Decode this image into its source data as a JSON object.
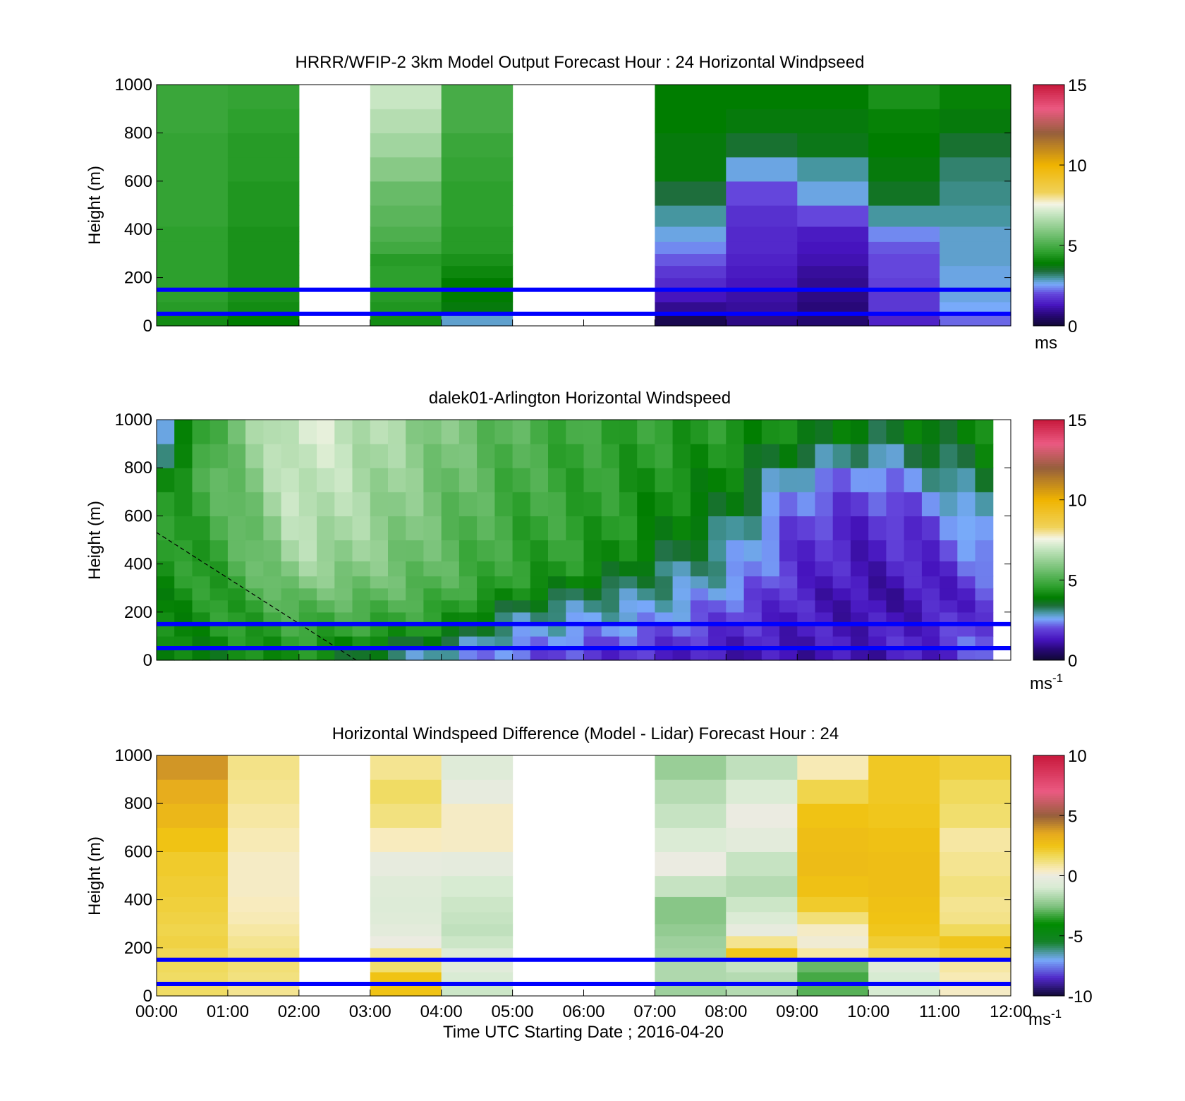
{
  "figure": {
    "time_axis_label": "Time UTC  Starting Date ; 2016-04-20",
    "x_tick_labels": [
      "00:00",
      "01:00",
      "02:00",
      "03:00",
      "04:00",
      "05:00",
      "06:00",
      "07:00",
      "08:00",
      "09:00",
      "10:00",
      "11:00",
      "12:00"
    ],
    "reference_line_color": "#0000ff",
    "reference_line_heights_m": [
      150,
      50
    ]
  },
  "chart_data": [
    {
      "type": "heatmap",
      "title": "HRRR/WFIP-2 3km Model Output   Forecast Hour : 24 Horizontal Windpseed",
      "ylabel": "Height (m)",
      "xlabel": "",
      "ylim": [
        0,
        1000
      ],
      "xlim": [
        "00:00",
        "12:00"
      ],
      "y_ticks": [
        "0",
        "200",
        "400",
        "600",
        "800",
        "1000"
      ],
      "colorbar": {
        "min": 0,
        "max": 15,
        "ticks": [
          "0",
          "5",
          "10",
          "15"
        ],
        "unit": "ms",
        "unit_sup": ""
      },
      "colormap": "wind",
      "time_bins": [
        "00:00",
        "01:00",
        "02:00",
        "03:00",
        "04:00",
        "05:00",
        "06:00",
        "07:00",
        "08:00",
        "09:00",
        "10:00",
        "11:00"
      ],
      "height_levels_m": [
        25,
        75,
        125,
        175,
        225,
        275,
        325,
        375,
        450,
        550,
        650,
        750,
        850,
        950
      ],
      "values": [
        [
          4.2,
          4.5,
          4.6,
          4.6,
          4.6,
          4.6,
          4.6,
          4.6,
          4.7,
          4.7,
          4.7,
          4.7,
          4.8,
          4.8
        ],
        [
          3.9,
          4.2,
          4.3,
          4.3,
          4.3,
          4.3,
          4.3,
          4.3,
          4.4,
          4.4,
          4.5,
          4.5,
          4.6,
          4.7
        ],
        [
          null,
          null,
          null,
          null,
          null,
          null,
          null,
          null,
          null,
          null,
          null,
          null,
          null,
          null
        ],
        [
          4.2,
          4.4,
          4.5,
          4.6,
          4.6,
          4.5,
          4.9,
          5.1,
          5.3,
          5.5,
          6.0,
          6.4,
          6.7,
          7.0
        ],
        [
          2.8,
          3.8,
          3.9,
          3.9,
          4.1,
          4.3,
          4.5,
          4.5,
          4.6,
          4.6,
          4.7,
          4.8,
          5.0,
          5.0
        ],
        [
          null,
          null,
          null,
          null,
          null,
          null,
          null,
          null,
          null,
          null,
          null,
          null,
          null,
          null
        ],
        [
          null,
          null,
          null,
          null,
          null,
          null,
          null,
          null,
          null,
          null,
          null,
          null,
          null,
          null
        ],
        [
          0.3,
          0.9,
          1.3,
          1.6,
          1.8,
          2.1,
          2.4,
          2.7,
          3.0,
          3.4,
          3.8,
          3.8,
          3.9,
          3.9
        ],
        [
          0.8,
          1.0,
          1.1,
          1.3,
          1.4,
          1.5,
          1.6,
          1.6,
          1.7,
          2.0,
          2.7,
          3.5,
          3.8,
          3.9
        ],
        [
          0.6,
          0.7,
          0.8,
          0.9,
          1.0,
          1.2,
          1.3,
          1.4,
          2.0,
          2.7,
          3.0,
          3.7,
          3.8,
          3.9
        ],
        [
          1.5,
          1.8,
          1.8,
          1.9,
          2.0,
          2.0,
          2.1,
          2.4,
          3.0,
          3.6,
          3.8,
          3.9,
          4.0,
          4.3
        ],
        [
          2.2,
          2.6,
          2.7,
          2.7,
          2.7,
          2.8,
          2.8,
          2.8,
          3.0,
          3.1,
          3.2,
          3.5,
          3.8,
          4.0
        ]
      ]
    },
    {
      "type": "heatmap",
      "title": "dalek01-Arlington  Horizontal Windspeed",
      "ylabel": "Height (m)",
      "xlabel": "",
      "ylim": [
        0,
        1000
      ],
      "xlim": [
        "00:00",
        "12:00"
      ],
      "y_ticks": [
        "0",
        "200",
        "400",
        "600",
        "800",
        "1000"
      ],
      "colorbar": {
        "min": 0,
        "max": 15,
        "ticks": [
          "0",
          "5",
          "10",
          "15"
        ],
        "unit": "ms",
        "unit_sup": "-1"
      },
      "colormap": "wind",
      "time_range": [
        "00:00",
        "11:45"
      ],
      "profile_count": 47,
      "height_levels_m": [
        25,
        75,
        125,
        175,
        225,
        275,
        325,
        375,
        450,
        550,
        650,
        750,
        850,
        950
      ],
      "lidar_min_speed_profile_by_hour": {
        "hours": [
          0,
          1,
          2,
          3,
          4,
          5,
          6,
          7,
          8,
          9,
          10,
          11,
          12
        ],
        "min_speed": [
          3.9,
          4.2,
          4.5,
          4.9,
          4.8,
          4.5,
          3.2,
          2.8,
          1.6,
          1.0,
          0.9,
          1.2,
          2.0
        ]
      },
      "approx_values_by_hour": [
        [
          3.8,
          3.9,
          4.0,
          4.0,
          4.1,
          4.1,
          4.2,
          4.2,
          4.2,
          4.3,
          4.3,
          4.1,
          3.2,
          2.6
        ],
        [
          4.0,
          4.2,
          4.4,
          4.5,
          4.5,
          4.6,
          4.7,
          4.8,
          4.9,
          5.0,
          5.2,
          5.4,
          5.5,
          5.6
        ],
        [
          4.4,
          4.6,
          4.8,
          5.0,
          5.3,
          5.6,
          6.0,
          6.3,
          6.6,
          6.8,
          7.0,
          7.1,
          7.2,
          7.3
        ],
        [
          3.5,
          4.0,
          4.6,
          4.9,
          5.2,
          5.5,
          5.7,
          5.9,
          6.1,
          6.3,
          6.4,
          6.5,
          6.6,
          6.7
        ],
        [
          2.8,
          3.4,
          4.1,
          4.6,
          4.8,
          5.0,
          5.2,
          5.3,
          5.4,
          5.5,
          5.6,
          5.7,
          5.8,
          5.9
        ],
        [
          2.2,
          2.6,
          2.9,
          3.1,
          3.6,
          4.2,
          4.5,
          4.6,
          4.7,
          4.8,
          4.9,
          5.0,
          5.1,
          5.2
        ],
        [
          1.8,
          2.2,
          2.5,
          2.8,
          3.0,
          3.3,
          3.8,
          4.3,
          4.5,
          4.6,
          4.7,
          4.7,
          4.7,
          4.8
        ],
        [
          1.6,
          1.9,
          2.2,
          2.6,
          2.8,
          3.0,
          3.2,
          3.3,
          3.8,
          4.1,
          4.2,
          4.3,
          4.5,
          4.6
        ],
        [
          1.3,
          1.5,
          1.7,
          1.9,
          2.1,
          2.4,
          2.7,
          2.9,
          3.0,
          3.3,
          3.8,
          4.0,
          4.2,
          4.4
        ],
        [
          1.2,
          1.3,
          1.4,
          1.4,
          1.5,
          1.5,
          1.6,
          1.7,
          1.7,
          1.9,
          2.2,
          2.6,
          3.4,
          4.0
        ],
        [
          1.2,
          1.4,
          1.3,
          1.2,
          1.1,
          1.1,
          1.2,
          1.3,
          1.4,
          1.5,
          1.8,
          2.2,
          2.9,
          3.6
        ],
        [
          1.5,
          1.7,
          1.6,
          1.5,
          1.4,
          1.4,
          1.5,
          1.6,
          1.8,
          2.0,
          2.4,
          2.9,
          3.4,
          3.8
        ],
        [
          2.4,
          2.6,
          2.4,
          2.2,
          2.0,
          2.1,
          2.3,
          2.6,
          3.0,
          3.4,
          3.7,
          3.9,
          4.0,
          4.1
        ]
      ]
    },
    {
      "type": "heatmap",
      "title": "Horizontal Windspeed Difference (Model - Lidar) Forecast Hour : 24",
      "ylabel": "Height (m)",
      "xlabel": "Time UTC  Starting Date ; 2016-04-20",
      "ylim": [
        0,
        1000
      ],
      "xlim": [
        "00:00",
        "12:00"
      ],
      "y_ticks": [
        "0",
        "200",
        "400",
        "600",
        "800",
        "1000"
      ],
      "colorbar": {
        "min": -10,
        "max": 10,
        "ticks": [
          "-10",
          "-5",
          "0",
          "5",
          "10"
        ],
        "unit": "ms",
        "unit_sup": "-1"
      },
      "colormap": "diff",
      "time_bins": [
        "00:00",
        "01:00",
        "02:00",
        "03:00",
        "04:00",
        "05:00",
        "06:00",
        "07:00",
        "08:00",
        "09:00",
        "10:00",
        "11:00"
      ],
      "height_levels_m": [
        25,
        75,
        125,
        175,
        225,
        275,
        325,
        375,
        450,
        550,
        650,
        750,
        850,
        950
      ],
      "values": [
        [
          1.5,
          1.5,
          1.6,
          1.7,
          1.9,
          1.8,
          1.9,
          2.0,
          2.1,
          2.2,
          2.5,
          3.0,
          3.4,
          3.9
        ],
        [
          1.0,
          1.2,
          1.3,
          1.2,
          1.0,
          0.8,
          0.6,
          0.5,
          0.4,
          0.4,
          0.6,
          0.8,
          1.0,
          1.1
        ],
        [
          null,
          null,
          null,
          null,
          null,
          null,
          null,
          null,
          null,
          null,
          null,
          null,
          null,
          null
        ],
        [
          2.5,
          2.5,
          1.4,
          1.0,
          0.0,
          -0.4,
          -0.6,
          -0.7,
          -0.6,
          -0.2,
          0.5,
          1.2,
          1.5,
          1.0
        ],
        [
          -1.2,
          -0.9,
          -0.5,
          -0.7,
          -1.2,
          -1.4,
          -1.3,
          -1.2,
          -1.0,
          -0.3,
          0.4,
          0.4,
          -0.2,
          -0.6
        ],
        [
          null,
          null,
          null,
          null,
          null,
          null,
          null,
          null,
          null,
          null,
          null,
          null,
          null,
          null
        ],
        [
          null,
          null,
          null,
          null,
          null,
          null,
          null,
          null,
          null,
          null,
          null,
          null,
          null,
          null
        ],
        [
          -2.0,
          -1.7,
          -1.7,
          -1.9,
          -2.0,
          -2.2,
          -2.4,
          -2.4,
          -1.3,
          0.0,
          -0.8,
          -1.3,
          -1.6,
          -2.1
        ],
        [
          -1.6,
          -1.6,
          -1.3,
          2.4,
          1.0,
          -0.2,
          -0.8,
          -1.2,
          -1.6,
          -1.3,
          -0.4,
          0.0,
          -0.8,
          -1.4
        ],
        [
          -3.0,
          -3.2,
          -2.8,
          0.8,
          0.2,
          0.4,
          1.3,
          2.2,
          2.6,
          2.8,
          2.7,
          2.5,
          1.8,
          0.6
        ],
        [
          -1.0,
          -1.0,
          -0.6,
          1.6,
          2.1,
          2.4,
          2.5,
          2.6,
          2.7,
          2.7,
          2.6,
          2.4,
          2.3,
          2.3
        ],
        [
          0.4,
          0.6,
          0.8,
          2.0,
          2.4,
          1.6,
          1.1,
          1.0,
          1.2,
          1.0,
          0.8,
          1.4,
          1.6,
          2.0
        ]
      ]
    }
  ]
}
